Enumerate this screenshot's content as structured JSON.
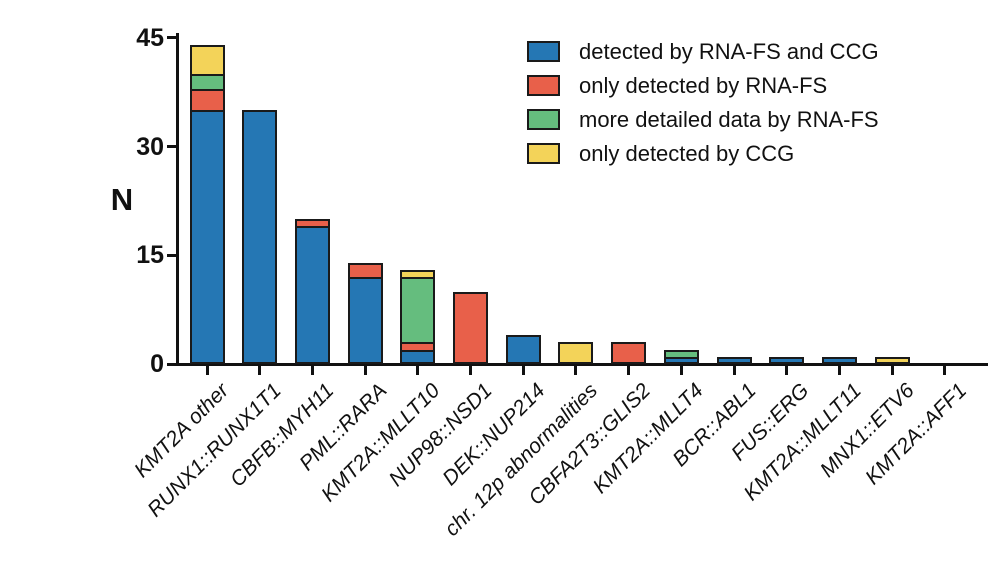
{
  "chart_data": {
    "type": "bar",
    "stacked": true,
    "title": "",
    "xlabel": "",
    "ylabel": "N",
    "ylim": [
      0,
      45
    ],
    "yticks": [
      0,
      15,
      30,
      45
    ],
    "grid": false,
    "legend_position": "top-right",
    "categories": [
      "KMT2A other",
      "RUNX1::RUNX1T1",
      "CBFB::MYH11",
      "PML::RARA",
      "KMT2A::MLLT10",
      "NUP98::NSD1",
      "DEK::NUP214",
      "chr. 12p abnormalities",
      "CBFA2T3::GLIS2",
      "KMT2A::MLLT4",
      "BCR::ABL1",
      "FUS::ERG",
      "KMT2A::MLLT11",
      "MNX1::ETV6",
      "KMT2A::AFF1"
    ],
    "series": [
      {
        "name": "detected by RNA-FS and CCG",
        "color": "#2577B4",
        "values": [
          35,
          35,
          19,
          12,
          2,
          0,
          4,
          0,
          0,
          1,
          1,
          1,
          1,
          0,
          0
        ]
      },
      {
        "name": "only detected by RNA-FS",
        "color": "#E8604A",
        "values": [
          3,
          0,
          1,
          2,
          1,
          10,
          0,
          0,
          3,
          0,
          0,
          0,
          0,
          0,
          0
        ]
      },
      {
        "name": "more detailed data by RNA-FS",
        "color": "#65BD7E",
        "values": [
          2,
          0,
          0,
          0,
          9,
          0,
          0,
          0,
          0,
          1,
          0,
          0,
          0,
          0,
          0
        ]
      },
      {
        "name": "only detected by CCG",
        "color": "#F3D359",
        "values": [
          4,
          0,
          0,
          0,
          1,
          0,
          0,
          3,
          0,
          0,
          0,
          0,
          0,
          1,
          0
        ]
      }
    ],
    "totals": [
      44,
      35,
      20,
      14,
      13,
      10,
      4,
      3,
      3,
      2,
      1,
      1,
      1,
      1,
      0
    ]
  }
}
